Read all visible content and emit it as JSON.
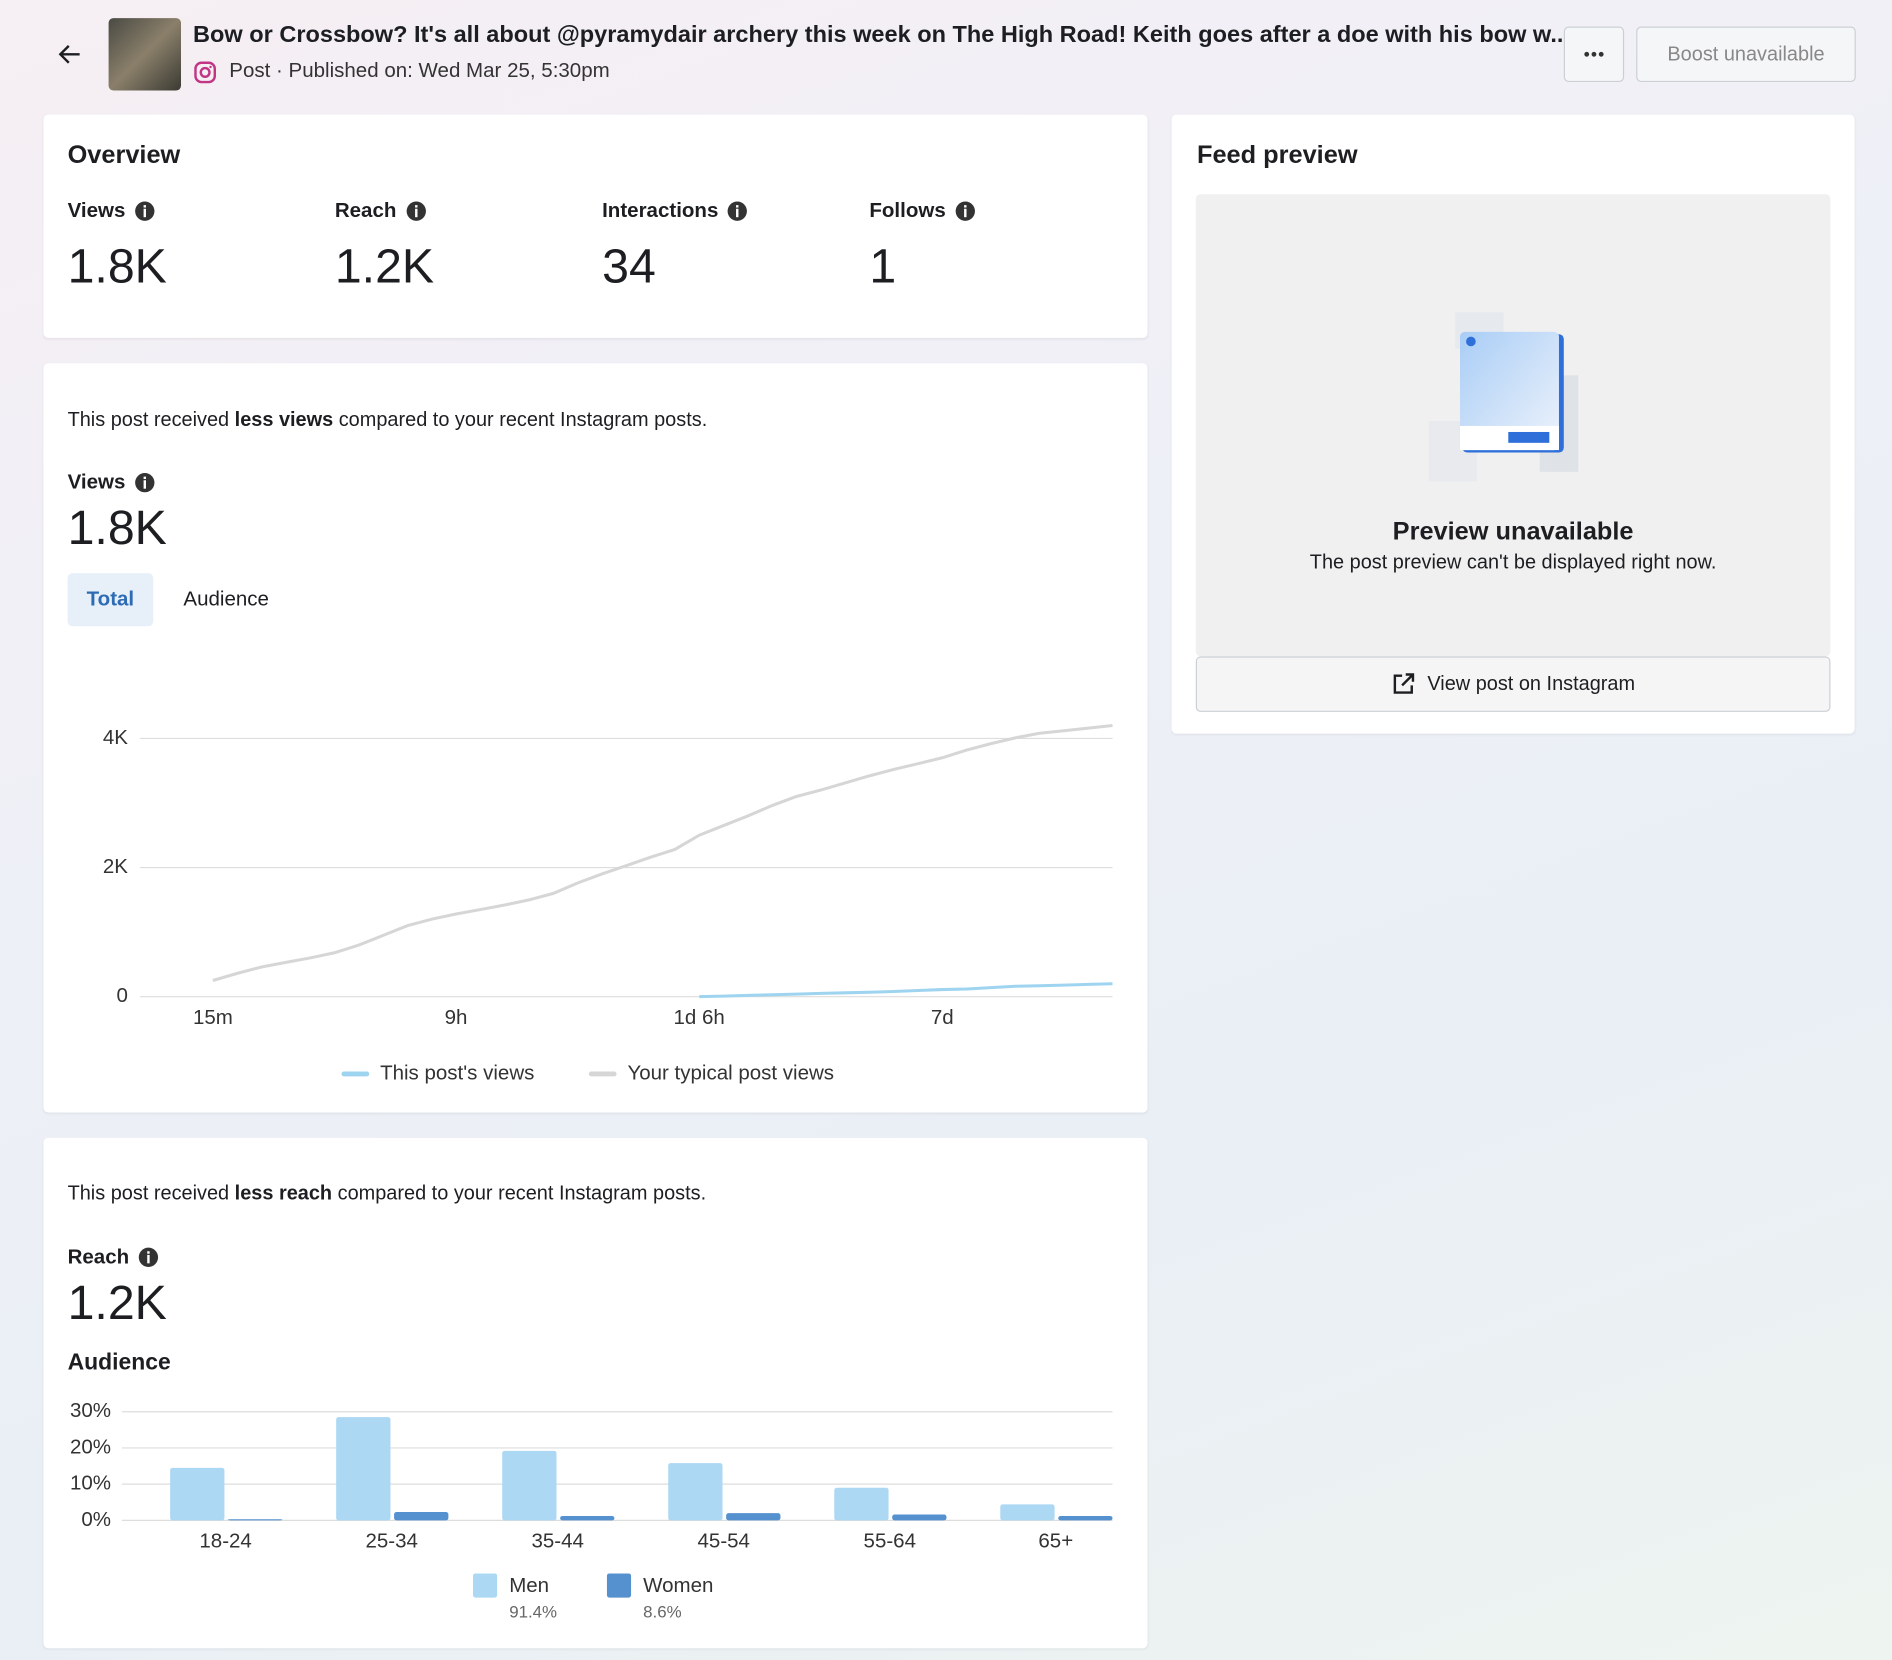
{
  "header": {
    "title": "Bow or Crossbow? It's all about @pyramydair archery this week on The High Road! Keith goes after a doe with his bow w...",
    "subtitle": "Post · Published on: Wed Mar 25, 5:30pm",
    "boost": "Boost unavailable"
  },
  "overview": {
    "title": "Overview",
    "metrics": [
      {
        "label": "Views",
        "value": "1.8K"
      },
      {
        "label": "Reach",
        "value": "1.2K"
      },
      {
        "label": "Interactions",
        "value": "34"
      },
      {
        "label": "Follows",
        "value": "1"
      }
    ]
  },
  "views_section": {
    "note_before": "This post received ",
    "note_bold": "less views",
    "note_after": " compared to your recent Instagram posts.",
    "metric_label": "Views",
    "metric_value": "1.8K",
    "tabs": [
      "Total",
      "Audience"
    ]
  },
  "reach_section": {
    "note_before": "This post received ",
    "note_bold": "less reach",
    "note_after": " compared to your recent Instagram posts.",
    "metric_label": "Reach",
    "metric_value": "1.2K",
    "audience_title": "Audience"
  },
  "feed_preview": {
    "title": "Feed preview",
    "status_title": "Preview unavailable",
    "status_text": "The post preview can't be displayed right now.",
    "button": "View post on Instagram"
  },
  "chart_data": [
    {
      "type": "line",
      "x": [
        0,
        0.1,
        0.2,
        0.3,
        0.4,
        0.5,
        0.6,
        0.7,
        0.8,
        0.9,
        1.0,
        1.1,
        1.2,
        1.3,
        1.4,
        1.5,
        1.6,
        1.7,
        1.8,
        1.9,
        2.0,
        2.1,
        2.2,
        2.3,
        2.4,
        2.5,
        2.6,
        2.7,
        2.8,
        2.9,
        3.0,
        3.1,
        3.2,
        3.3,
        3.4,
        3.5,
        3.6,
        3.7
      ],
      "series": [
        {
          "name": "This post's views",
          "color": "#9fd4f0",
          "values": [
            null,
            null,
            null,
            null,
            null,
            null,
            null,
            null,
            null,
            null,
            null,
            null,
            null,
            null,
            null,
            null,
            null,
            null,
            null,
            null,
            0,
            10,
            20,
            30,
            40,
            50,
            60,
            70,
            80,
            95,
            110,
            120,
            140,
            160,
            170,
            180,
            190,
            200
          ]
        },
        {
          "name": "Your typical post views",
          "color": "#d6d6d6",
          "values": [
            250,
            360,
            460,
            530,
            600,
            680,
            800,
            950,
            1100,
            1200,
            1280,
            1350,
            1420,
            1500,
            1600,
            1760,
            1900,
            2030,
            2160,
            2280,
            2500,
            2650,
            2800,
            2960,
            3100,
            3200,
            3310,
            3420,
            3520,
            3610,
            3700,
            3820,
            3920,
            4010,
            4080,
            4120,
            4160,
            4200
          ]
        }
      ],
      "xlim": [
        -0.3,
        3.7
      ],
      "xticks": [
        {
          "value": 0,
          "label": "15m"
        },
        {
          "value": 1,
          "label": "9h"
        },
        {
          "value": 2,
          "label": "1d 6h"
        },
        {
          "value": 3,
          "label": "7d"
        }
      ],
      "ylim": [
        0,
        4400
      ],
      "yticks": [
        0,
        {
          "value": 2000,
          "label": "2K"
        },
        {
          "value": 4000,
          "label": "4K"
        }
      ],
      "grid": true
    },
    {
      "type": "bar",
      "categories": [
        "18-24",
        "25-34",
        "35-44",
        "45-54",
        "55-64",
        "65+"
      ],
      "series": [
        {
          "name": "Men",
          "share": "91.4%",
          "color": "#acd8f3",
          "values": [
            14.5,
            28.5,
            19.2,
            15.8,
            9,
            4.4
          ]
        },
        {
          "name": "Women",
          "share": "8.6%",
          "color": "#5591cf",
          "values": [
            0.3,
            2.3,
            1.2,
            2,
            1.6,
            1.2
          ]
        }
      ],
      "ylim": [
        0,
        30
      ],
      "yticks": [
        {
          "value": 0,
          "label": "0%"
        },
        {
          "value": 10,
          "label": "10%"
        },
        {
          "value": 20,
          "label": "20%"
        },
        {
          "value": 30,
          "label": "30%"
        }
      ],
      "grid": true
    }
  ]
}
